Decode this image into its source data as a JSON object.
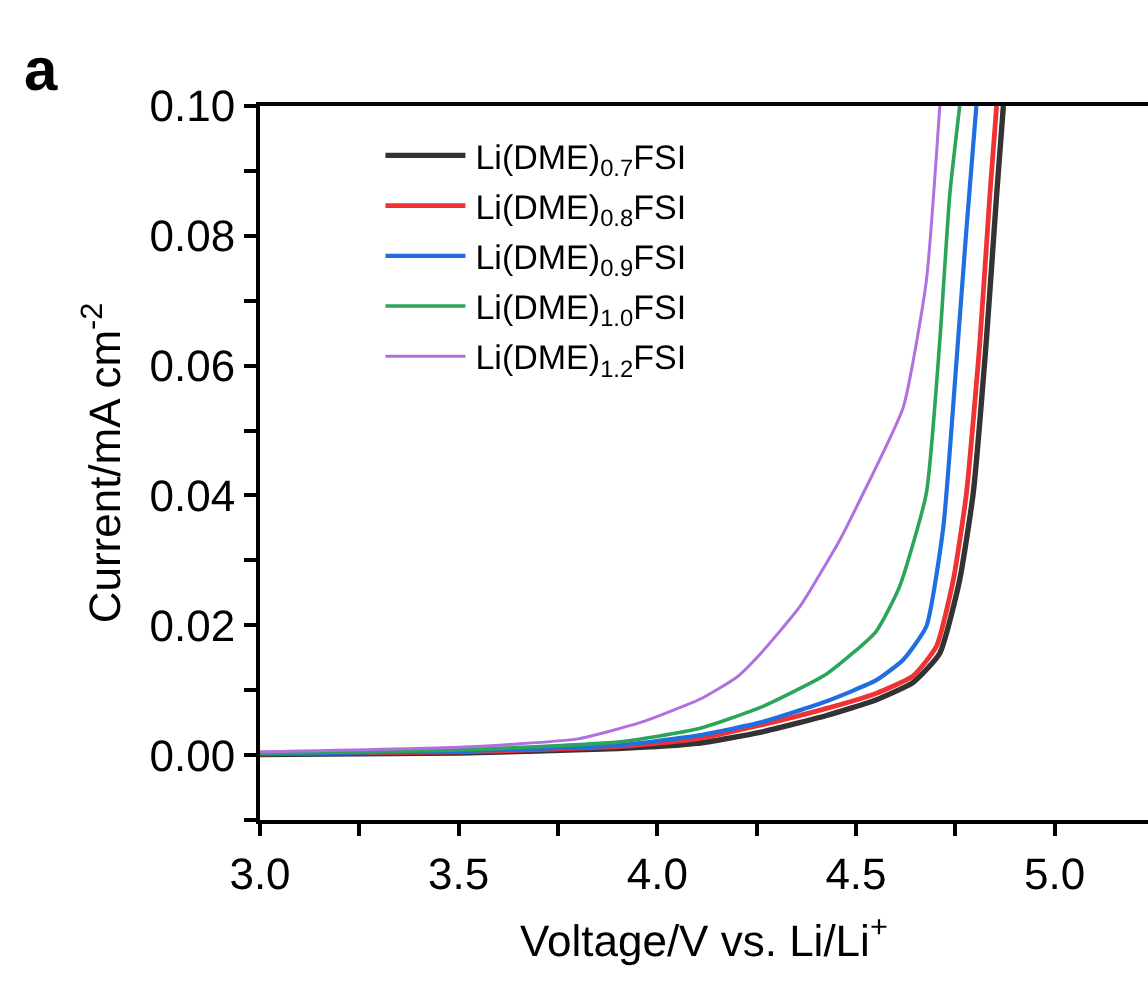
{
  "chart_data": {
    "type": "line",
    "title": "a",
    "xlabel": "Voltage/V vs. Li/Li$^{+}$",
    "ylabel": "Current/mA cm$^{-2}$",
    "xlim": [
      3.0,
      5.235
    ],
    "ylim": [
      -0.01,
      0.1
    ],
    "xticks": [
      {
        "value": 3.0,
        "label": "3.0"
      },
      {
        "value": 3.25,
        "label": null
      },
      {
        "value": 3.5,
        "label": "3.5"
      },
      {
        "value": 3.75,
        "label": null
      },
      {
        "value": 4.0,
        "label": "4.0"
      },
      {
        "value": 4.25,
        "label": null
      },
      {
        "value": 4.5,
        "label": "4.5"
      },
      {
        "value": 4.75,
        "label": null
      },
      {
        "value": 5.0,
        "label": "5.0"
      }
    ],
    "yticks": [
      {
        "value": -0.01,
        "label": null
      },
      {
        "value": 0.0,
        "label": "0.00"
      },
      {
        "value": 0.01,
        "label": null
      },
      {
        "value": 0.02,
        "label": "0.02"
      },
      {
        "value": 0.03,
        "label": null
      },
      {
        "value": 0.04,
        "label": "0.04"
      },
      {
        "value": 0.05,
        "label": null
      },
      {
        "value": 0.06,
        "label": "0.06"
      },
      {
        "value": 0.07,
        "label": null
      },
      {
        "value": 0.08,
        "label": "0.08"
      },
      {
        "value": 0.09,
        "label": null
      },
      {
        "value": 0.1,
        "label": "0.10"
      }
    ],
    "legend": "top left",
    "marker": "none",
    "line_style": "solid",
    "series": [
      {
        "name": "Li(DME)$_{0.7}$FSI",
        "color": "#333333",
        "x": [
          3.0,
          3.5,
          3.9,
          4.1,
          4.258,
          4.426,
          4.55,
          4.644,
          4.711,
          4.761,
          4.795,
          4.828,
          4.854,
          4.871
        ],
        "values": [
          0.0001,
          0.0003,
          0.001,
          0.0018,
          0.0035,
          0.0061,
          0.0085,
          0.0112,
          0.0157,
          0.027,
          0.0403,
          0.0638,
          0.0863,
          0.1
        ]
      },
      {
        "name": "Li(DME)$_{0.8}$FSI",
        "color": "#f03232",
        "x": [
          3.0,
          3.5,
          3.9,
          4.1,
          4.258,
          4.426,
          4.55,
          4.644,
          4.703,
          4.745,
          4.778,
          4.812,
          4.837,
          4.854
        ],
        "values": [
          0.0002,
          0.0005,
          0.0013,
          0.0025,
          0.0046,
          0.0072,
          0.0095,
          0.0122,
          0.0168,
          0.027,
          0.0403,
          0.0638,
          0.0863,
          0.1
        ]
      },
      {
        "name": "Li(DME)$_{0.9}$FSI",
        "color": "#1f6fe0",
        "x": [
          3.0,
          3.5,
          3.9,
          4.1,
          4.258,
          4.426,
          4.55,
          4.619,
          4.677,
          4.72,
          4.753,
          4.778,
          4.803
        ],
        "values": [
          0.0002,
          0.0006,
          0.0015,
          0.003,
          0.005,
          0.0083,
          0.0115,
          0.0147,
          0.0198,
          0.0352,
          0.0607,
          0.081,
          0.1
        ]
      },
      {
        "name": "Li(DME)$_{1.0}$FSI",
        "color": "#2aa55a",
        "x": [
          3.0,
          3.5,
          3.9,
          4.1,
          4.258,
          4.426,
          4.55,
          4.61,
          4.677,
          4.711,
          4.736,
          4.761
        ],
        "values": [
          0.0003,
          0.0008,
          0.002,
          0.004,
          0.0073,
          0.0125,
          0.019,
          0.026,
          0.0403,
          0.0638,
          0.0863,
          0.1
        ]
      },
      {
        "name": "Li(DME)$_{1.2}$FSI",
        "color": "#b070e0",
        "x": [
          3.0,
          3.5,
          3.8,
          3.956,
          4.107,
          4.2,
          4.258,
          4.359,
          4.459,
          4.51,
          4.619,
          4.677,
          4.711
        ],
        "values": [
          0.0005,
          0.0012,
          0.0025,
          0.005,
          0.0086,
          0.012,
          0.0155,
          0.0229,
          0.0331,
          0.0393,
          0.0536,
          0.073,
          0.1
        ]
      }
    ]
  }
}
